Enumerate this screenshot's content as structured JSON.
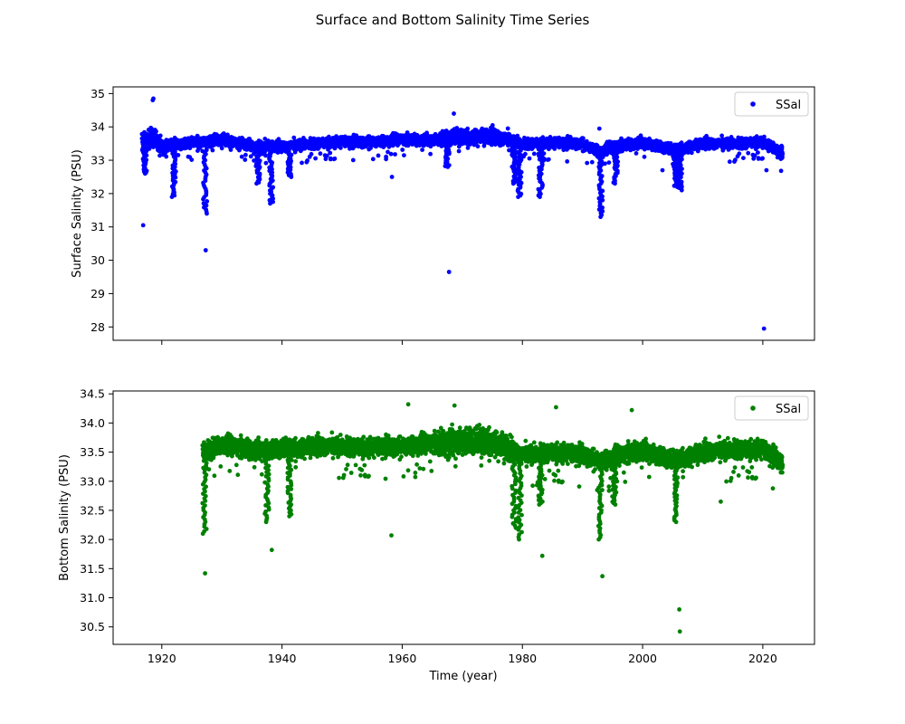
{
  "figure": {
    "title": "Surface and Bottom Salinity Time Series"
  },
  "chart_data": [
    {
      "type": "scatter",
      "title": "",
      "xlabel": "",
      "ylabel": "Surface Salinity (PSU)",
      "xlim": [
        1911.9,
        2028.6
      ],
      "ylim": [
        27.6,
        35.2
      ],
      "xticks": [
        1920,
        1940,
        1960,
        1980,
        2000,
        2020
      ],
      "xtick_labels_visible": false,
      "yticks": [
        28,
        29,
        30,
        31,
        32,
        33,
        34,
        35
      ],
      "legend": {
        "position": "top-right",
        "entries": [
          "SSal"
        ]
      },
      "grid": false,
      "color": "#0000ff",
      "series": [
        {
          "name": "SSal",
          "baseline": [
            [
              1916.7,
              33.5
            ],
            [
              1918.5,
              33.7
            ],
            [
              1920,
              33.45
            ],
            [
              1925,
              33.5
            ],
            [
              1930,
              33.62
            ],
            [
              1935,
              33.45
            ],
            [
              1940,
              33.4
            ],
            [
              1945,
              33.5
            ],
            [
              1950,
              33.55
            ],
            [
              1955,
              33.55
            ],
            [
              1960,
              33.62
            ],
            [
              1965,
              33.62
            ],
            [
              1970,
              33.7
            ],
            [
              1975,
              33.72
            ],
            [
              1980,
              33.5
            ],
            [
              1985,
              33.52
            ],
            [
              1990,
              33.5
            ],
            [
              1993,
              33.25
            ],
            [
              1995,
              33.4
            ],
            [
              2000,
              33.55
            ],
            [
              2005,
              33.3
            ],
            [
              2010,
              33.5
            ],
            [
              2015,
              33.5
            ],
            [
              2020,
              33.55
            ],
            [
              2023.3,
              33.2
            ]
          ],
          "dips": [
            [
              1917.2,
              32.6
            ],
            [
              1922,
              31.9
            ],
            [
              1927.2,
              31.4
            ],
            [
              1936,
              32.3
            ],
            [
              1938.2,
              31.7
            ],
            [
              1941.3,
              32.5
            ],
            [
              1967.5,
              32.8
            ],
            [
              1978.6,
              32.3
            ],
            [
              1979.5,
              31.9
            ],
            [
              1983,
              31.9
            ],
            [
              1993,
              31.3
            ],
            [
              1995.5,
              32.3
            ],
            [
              2005.5,
              32.2
            ],
            [
              2006.2,
              32.1
            ]
          ],
          "outliers": [
            [
              1916.9,
              31.05
            ],
            [
              1918.5,
              34.8
            ],
            [
              1918.6,
              34.85
            ],
            [
              1927.3,
              30.3
            ],
            [
              1958.3,
              32.5
            ],
            [
              1967.8,
              29.65
            ],
            [
              1968.6,
              34.4
            ],
            [
              1992.8,
              33.95
            ],
            [
              2003.3,
              32.7
            ],
            [
              2020.2,
              27.95
            ],
            [
              2020.6,
              32.7
            ]
          ]
        }
      ]
    },
    {
      "type": "scatter",
      "title": "",
      "xlabel": "Time (year)",
      "ylabel": "Bottom Salinity (PSU)",
      "xlim": [
        1911.9,
        2028.6
      ],
      "ylim": [
        30.2,
        34.55
      ],
      "xticks": [
        1920,
        1940,
        1960,
        1980,
        2000,
        2020
      ],
      "xtick_labels_visible": true,
      "yticks": [
        30.5,
        31.0,
        31.5,
        32.0,
        32.5,
        33.0,
        33.5,
        34.0,
        34.5
      ],
      "legend": {
        "position": "top-right",
        "entries": [
          "SSal"
        ]
      },
      "grid": false,
      "color": "#008000",
      "series": [
        {
          "name": "SSal",
          "baseline": [
            [
              1926.8,
              33.5
            ],
            [
              1930,
              33.62
            ],
            [
              1935,
              33.55
            ],
            [
              1940,
              33.55
            ],
            [
              1945,
              33.6
            ],
            [
              1950,
              33.6
            ],
            [
              1955,
              33.58
            ],
            [
              1960,
              33.6
            ],
            [
              1965,
              33.65
            ],
            [
              1970,
              33.7
            ],
            [
              1975,
              33.68
            ],
            [
              1980,
              33.45
            ],
            [
              1985,
              33.5
            ],
            [
              1990,
              33.45
            ],
            [
              1993,
              33.35
            ],
            [
              1995,
              33.4
            ],
            [
              2000,
              33.55
            ],
            [
              2005,
              33.35
            ],
            [
              2010,
              33.5
            ],
            [
              2015,
              33.55
            ],
            [
              2020,
              33.55
            ],
            [
              2023.3,
              33.3
            ]
          ],
          "dips": [
            [
              1927.1,
              32.1
            ],
            [
              1937.5,
              32.3
            ],
            [
              1941.3,
              32.4
            ],
            [
              1978.6,
              32.2
            ],
            [
              1979.6,
              32.0
            ],
            [
              1983,
              32.6
            ],
            [
              1993,
              32.0
            ],
            [
              1995.3,
              32.6
            ],
            [
              2005.6,
              32.3
            ]
          ],
          "outliers": [
            [
              1927.2,
              31.42
            ],
            [
              1938.3,
              31.82
            ],
            [
              1958.2,
              32.07
            ],
            [
              1961,
              34.32
            ],
            [
              1968.7,
              34.3
            ],
            [
              1983.3,
              31.72
            ],
            [
              1985.6,
              34.27
            ],
            [
              1993.3,
              31.37
            ],
            [
              1998.2,
              34.22
            ],
            [
              2006.1,
              30.8
            ],
            [
              2006.2,
              30.42
            ],
            [
              2013,
              32.65
            ]
          ]
        }
      ]
    }
  ]
}
